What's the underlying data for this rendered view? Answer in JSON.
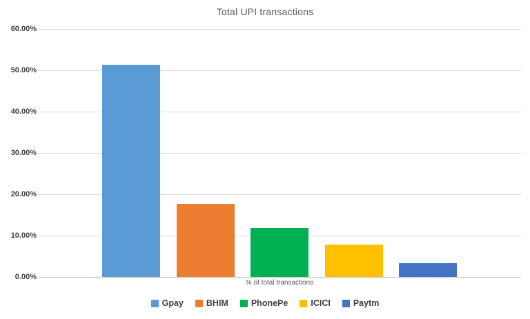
{
  "chart_data": {
    "type": "bar",
    "title": "Total UPI transactions",
    "categories": [
      "% of total transactions"
    ],
    "series": [
      {
        "name": "Gpay",
        "value": 51.3,
        "color": "#5B9BD5"
      },
      {
        "name": "BHIM",
        "value": 17.7,
        "color": "#ED7D31"
      },
      {
        "name": "PhonePe",
        "value": 11.8,
        "color": "#00B052"
      },
      {
        "name": "ICICI",
        "value": 7.8,
        "color": "#FFC000"
      },
      {
        "name": "Paytm",
        "value": 3.3,
        "color": "#4472C4"
      }
    ],
    "xlabel": "% of total transactions",
    "ylabel": "",
    "ylim": [
      0,
      60
    ],
    "ytick_step": 10,
    "ytick_labels": [
      "0.00%",
      "10.00%",
      "20.00%",
      "30.00%",
      "40.00%",
      "50.00%",
      "60.00%"
    ],
    "grid": true,
    "legend_position": "bottom",
    "unit": "%"
  },
  "styles": {
    "background": "#FFFFFF",
    "grid_color": "#D9D9D9",
    "axis_color": "#C9C9C9",
    "title_color": "#595959",
    "tick_label_color": "#404040",
    "legend_label_color": "#404040",
    "xlabel_color": "#595959"
  }
}
